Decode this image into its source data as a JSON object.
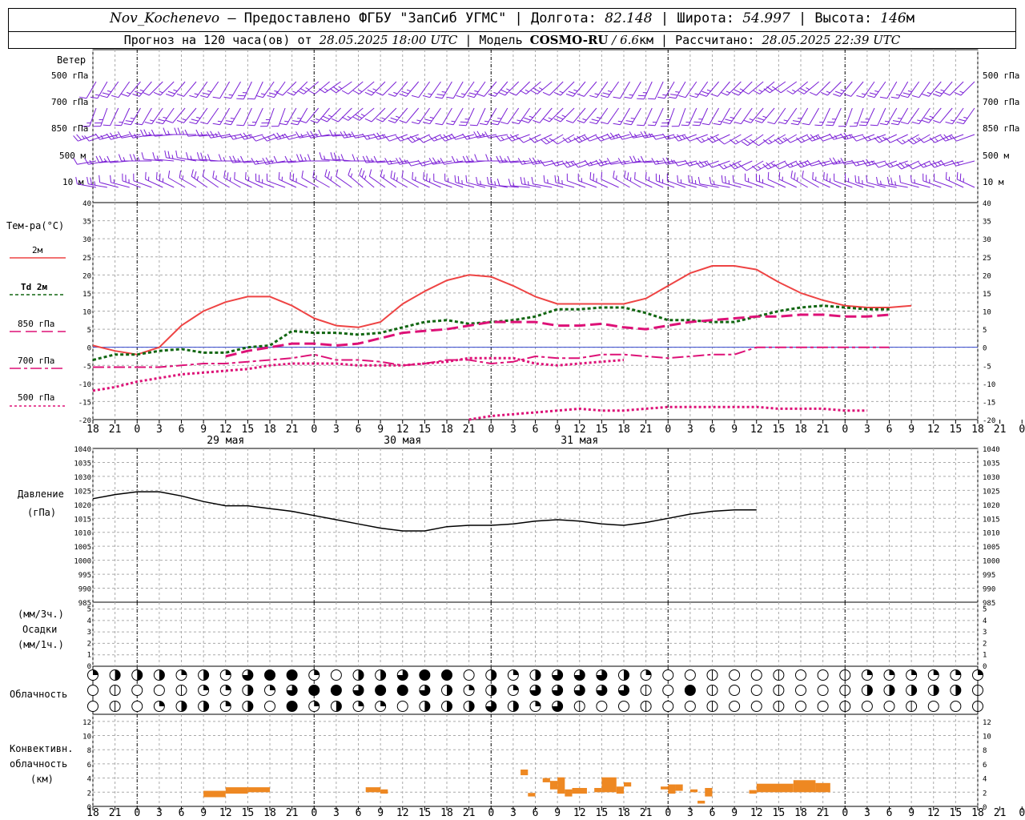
{
  "header": {
    "station": "Nov_Kochenevo",
    "provider": " – Предоставлено ФГБУ \"ЗапСиб УГМС\" | ",
    "lon_label": "Долгота: ",
    "lon_value": "82.148",
    "lat_label": " | Широта: ",
    "lat_value": "54.997",
    "alt_label": " | Высота: ",
    "alt_value": "146",
    "alt_unit": "м",
    "forecast_label": "Прогноз на 120 часа(ов) от ",
    "forecast_start": "28.05.2025 18:00 UTC",
    "model_label": "  | Модель ",
    "model_name": "COSMO-RU",
    "model_res": " / 6.6",
    "model_unit": "км",
    "calc_label": " | Рассчитано: ",
    "calc_time": "28.05.2025 22:39 UTC"
  },
  "labels": {
    "wind": "Ветер",
    "wind_levels": [
      "500 гПа",
      "700 гПа",
      "850 гПа",
      "500 м",
      "10  м"
    ],
    "temp_title": "Тем-ра(°С)",
    "temp_legend": [
      {
        "text": "2м",
        "color": "#ee4444",
        "dash": ""
      },
      {
        "text": "Td  2м",
        "color": "#116611",
        "dash": "4,3"
      },
      {
        "text": "850 гПа",
        "color": "#dd1177",
        "dash": "14,6"
      },
      {
        "text": "700 гПа",
        "color": "#dd1177",
        "dash": "14,4,4,4"
      },
      {
        "text": "500 гПа",
        "color": "#dd1177",
        "dash": "3,3"
      }
    ],
    "pressure_title": "Давление",
    "pressure_unit": "(гПа)",
    "precip_top": "(мм/3ч.)",
    "precip_title": "Осадки",
    "precip_bottom": "(мм/1ч.)",
    "cloud_title": "Облачность",
    "conv_title1": "Конвективн.",
    "conv_title2": "облачность",
    "conv_unit": "(км)"
  },
  "time_axis": {
    "hours": [
      "18",
      "21",
      "0",
      "3",
      "6",
      "9",
      "12",
      "15",
      "18",
      "21",
      "0",
      "3",
      "6",
      "9",
      "12",
      "15",
      "18",
      "21",
      "0",
      "3",
      "6",
      "9",
      "12",
      "15",
      "18",
      "21",
      "0",
      "3",
      "6",
      "9",
      "12",
      "15",
      "18",
      "21",
      "0",
      "3",
      "6",
      "9",
      "12",
      "15",
      "18",
      "21",
      "0"
    ],
    "dates": [
      {
        "index": 6,
        "text": "29 мая"
      },
      {
        "index": 14,
        "text": "30 мая"
      },
      {
        "index": 22,
        "text": "31 мая"
      }
    ]
  },
  "chart_data": [
    {
      "type": "line",
      "title": "Тем-ра(°С)",
      "x_hours_from_start": [
        0,
        3,
        6,
        9,
        12,
        15,
        18,
        21,
        24,
        27,
        30,
        33,
        36,
        39,
        42,
        45,
        48,
        51,
        54,
        57,
        60,
        63,
        66,
        69,
        72,
        75,
        78,
        81,
        84,
        87,
        90,
        93,
        96,
        99,
        102,
        105,
        108,
        111,
        114,
        117,
        120
      ],
      "ylim": [
        -20,
        40
      ],
      "series": [
        {
          "name": "2м",
          "values": [
            0.5,
            -1,
            -2,
            0,
            6,
            10,
            12.5,
            14,
            14,
            11.5,
            8,
            6,
            5.5,
            7,
            12,
            15.5,
            18.5,
            20,
            19.5,
            17,
            14,
            12,
            12,
            12,
            12,
            13.5,
            17,
            20.5,
            22.5,
            22.5,
            21.5,
            18,
            15,
            13,
            11.5,
            11,
            11,
            11.5,
            null,
            null,
            null
          ]
        },
        {
          "name": "Td 2м",
          "values": [
            -3.5,
            -2,
            -2,
            -1,
            -0.5,
            -1.5,
            -1.5,
            0,
            0.5,
            4.5,
            4,
            4,
            3.5,
            4,
            5.5,
            7,
            7.5,
            6.5,
            7,
            7.5,
            8.5,
            10.5,
            10.5,
            11,
            11,
            9.5,
            7.5,
            7.5,
            7,
            7,
            8.5,
            10,
            11,
            11.5,
            11,
            10.5,
            10.5,
            null,
            null,
            null,
            null
          ]
        },
        {
          "name": "850 гПа",
          "values": [
            null,
            null,
            null,
            null,
            null,
            null,
            -2.5,
            -1,
            0,
            1,
            1,
            0.5,
            1,
            2.5,
            4,
            4.5,
            5,
            6,
            7,
            7,
            7,
            6,
            6,
            6.5,
            5.5,
            5,
            6,
            7,
            7.5,
            8,
            8.5,
            8.5,
            9,
            9,
            8.5,
            8.5,
            9,
            null,
            null,
            null,
            null
          ]
        },
        {
          "name": "700 гПа",
          "values": [
            -5.5,
            -5.5,
            -5.5,
            -5.5,
            -5,
            -4.5,
            -4.5,
            -4,
            -3.5,
            -3,
            -2,
            -3.5,
            -3.5,
            -4,
            -5,
            -4.5,
            -3.5,
            -3.5,
            -4.5,
            -4,
            -2.5,
            -3,
            -3,
            -2,
            -2,
            -2.5,
            -3,
            -2.5,
            -2,
            -2,
            0,
            0,
            0,
            0,
            0,
            0,
            0,
            null,
            null,
            null,
            null
          ]
        },
        {
          "name": "500 гПа",
          "values": [
            -12,
            -11,
            -9.5,
            -8.5,
            -7.5,
            -7,
            -6.5,
            -6,
            -5,
            -4.5,
            -4.5,
            -4.5,
            -5,
            -5,
            -5,
            -4.5,
            -4,
            -3,
            -3,
            -3,
            -4.5,
            -5,
            -4.5,
            -4,
            -3.5,
            null,
            null,
            null,
            null,
            null,
            null,
            null,
            null,
            null,
            null,
            null,
            null,
            null,
            null,
            null,
            null
          ]
        },
        {
          "name": "500 гПа",
          "values": [
            null,
            null,
            null,
            null,
            null,
            null,
            null,
            null,
            null,
            null,
            null,
            null,
            null,
            null,
            null,
            null,
            null,
            -20,
            -19,
            -18.5,
            -18,
            -17.5,
            -17,
            -17.5,
            -17.5,
            -17,
            -16.5,
            -16.5,
            -16.5,
            -16.5,
            -16.5,
            -17,
            -17,
            -17,
            -17.5,
            -17.5,
            null,
            null,
            null,
            null,
            null
          ]
        }
      ]
    },
    {
      "type": "line",
      "title": "Давление (гПа)",
      "x_hours_from_start": [
        0,
        3,
        6,
        9,
        12,
        15,
        18,
        21,
        24,
        27,
        30,
        33,
        36,
        39,
        42,
        45,
        48,
        51,
        54,
        57,
        60,
        63,
        66,
        69,
        72,
        75,
        78,
        81,
        84,
        87,
        90,
        93,
        96,
        99,
        102,
        105,
        108,
        111,
        114,
        117,
        120
      ],
      "ylim": [
        985,
        1040
      ],
      "series": [
        {
          "name": "Давление",
          "values": [
            1022,
            1023.5,
            1024.5,
            1024.5,
            1023,
            1021,
            1019.5,
            1019.5,
            1018.5,
            1017.5,
            1016,
            1014.5,
            1013,
            1011.5,
            1010.5,
            1010.5,
            1012,
            1012.5,
            1012.5,
            1013,
            1014,
            1014.5,
            1014,
            1013,
            1012.5,
            1013.5,
            1015,
            1016.5,
            1017.5,
            1018,
            1018,
            null,
            null,
            null,
            null,
            null,
            null,
            null,
            null,
            null,
            null
          ]
        }
      ]
    },
    {
      "type": "bar",
      "title": "Конвективн. облачность (км)",
      "ylim": [
        0,
        13
      ],
      "bars": [
        {
          "start": 15,
          "end": 18,
          "base": 1.3,
          "top": 2.2
        },
        {
          "start": 18,
          "end": 21,
          "base": 1.8,
          "top": 2.7
        },
        {
          "start": 21,
          "end": 24,
          "base": 2.0,
          "top": 2.7
        },
        {
          "start": 37,
          "end": 39,
          "base": 2.0,
          "top": 2.7
        },
        {
          "start": 39,
          "end": 40,
          "base": 1.8,
          "top": 2.4
        },
        {
          "start": 58,
          "end": 59,
          "base": 4.4,
          "top": 5.2
        },
        {
          "start": 59,
          "end": 60,
          "base": 1.4,
          "top": 1.9
        },
        {
          "start": 61,
          "end": 62,
          "base": 3.4,
          "top": 4.0
        },
        {
          "start": 62,
          "end": 63,
          "base": 2.4,
          "top": 3.6
        },
        {
          "start": 63,
          "end": 64,
          "base": 1.8,
          "top": 4.1
        },
        {
          "start": 64,
          "end": 65,
          "base": 1.4,
          "top": 2.4
        },
        {
          "start": 65,
          "end": 67,
          "base": 1.8,
          "top": 2.6
        },
        {
          "start": 68,
          "end": 69,
          "base": 2.0,
          "top": 2.6
        },
        {
          "start": 69,
          "end": 71,
          "base": 2.0,
          "top": 4.1
        },
        {
          "start": 71,
          "end": 72,
          "base": 1.8,
          "top": 2.8
        },
        {
          "start": 72,
          "end": 73,
          "base": 2.8,
          "top": 3.4
        },
        {
          "start": 77,
          "end": 78,
          "base": 2.4,
          "top": 2.8
        },
        {
          "start": 78,
          "end": 79,
          "base": 1.8,
          "top": 3.1
        },
        {
          "start": 79,
          "end": 80,
          "base": 2.2,
          "top": 3.1
        },
        {
          "start": 81,
          "end": 82,
          "base": 2.0,
          "top": 2.4
        },
        {
          "start": 82,
          "end": 83,
          "base": 0.4,
          "top": 0.8
        },
        {
          "start": 83,
          "end": 84,
          "base": 1.4,
          "top": 2.6
        },
        {
          "start": 89,
          "end": 90,
          "base": 1.8,
          "top": 2.3
        },
        {
          "start": 90,
          "end": 95,
          "base": 2.0,
          "top": 3.2
        },
        {
          "start": 95,
          "end": 98,
          "base": 2.0,
          "top": 3.7
        },
        {
          "start": 98,
          "end": 100,
          "base": 2.0,
          "top": 3.3
        }
      ]
    }
  ],
  "cloud_rows": {
    "cover_fractions_top": [
      0.25,
      0.5,
      0.5,
      0.5,
      0.25,
      0.5,
      0.25,
      0.75,
      1,
      1,
      0.25,
      0,
      0.5,
      0.5,
      0.75,
      1,
      1,
      0,
      0.5,
      0.25,
      0.5,
      0.75,
      0.75,
      0.75,
      0.5,
      0.25,
      0,
      0,
      0,
      0,
      0,
      0,
      0,
      0,
      0,
      0.25,
      0.25,
      0.25,
      0.25,
      0.25
    ],
    "cover_fractions_middle": [
      0,
      0,
      0,
      0,
      0,
      0.25,
      0.25,
      0.5,
      0.25,
      0.75,
      1,
      1,
      0.75,
      1,
      1,
      0.75,
      0.5,
      0.25,
      0.5,
      0.25,
      0.75,
      0.75,
      0.75,
      0.75,
      0.75,
      0,
      0,
      1,
      0,
      0,
      0,
      0,
      0,
      0,
      0,
      0.5,
      0.5,
      0.5,
      0.5,
      0.5
    ],
    "cover_fractions_bottom": [
      0,
      0,
      0,
      0.25,
      0.5,
      0.5,
      0.25,
      0.5,
      0,
      1,
      0.25,
      0.5,
      0.25,
      0.25,
      0,
      0.5,
      0.5,
      0.5,
      0.75,
      0.5,
      0.25,
      0.75,
      0,
      0,
      0,
      0,
      0,
      0,
      0,
      0,
      0,
      0,
      0,
      0,
      0,
      0,
      0,
      0,
      0,
      0
    ]
  },
  "axes": {
    "temp_ticks": [
      "40",
      "35",
      "30",
      "25",
      "20",
      "15",
      "10",
      "5",
      "0",
      "-5",
      "-10",
      "-15",
      "-20"
    ],
    "pressure_ticks": [
      "1040",
      "1035",
      "1030",
      "1025",
      "1020",
      "1015",
      "1010",
      "1005",
      "1000",
      "995",
      "990",
      "985"
    ],
    "precip_ticks": [
      "5",
      "4",
      "3",
      "2",
      "1",
      "0"
    ],
    "conv_ticks": [
      "12",
      "10",
      "8",
      "6",
      "4",
      "2",
      "0"
    ]
  },
  "colors": {
    "temp2m": "#ee4444",
    "td2m": "#116611",
    "upper": "#dd1177",
    "wind": "#7a1fd6",
    "conv": "#ee8822",
    "zeroline": "#3344cc"
  }
}
